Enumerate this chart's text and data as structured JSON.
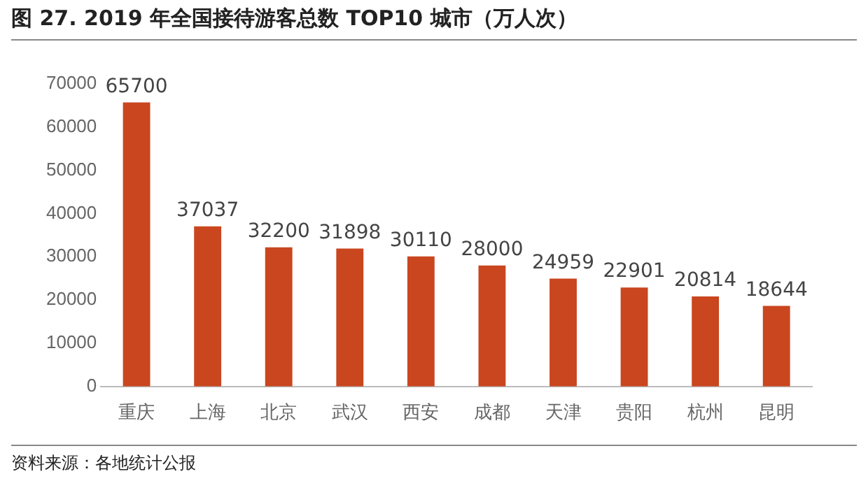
{
  "chart_data": {
    "type": "bar",
    "title": "图 27. 2019 年全国接待游客总数 TOP10 城市（万人次）",
    "categories": [
      "重庆",
      "上海",
      "北京",
      "武汉",
      "西安",
      "成都",
      "天津",
      "贵阳",
      "杭州",
      "昆明"
    ],
    "values": [
      65700,
      37037,
      32200,
      31898,
      30110,
      28000,
      24959,
      22901,
      20814,
      18644
    ],
    "color": "#c9461f",
    "ylim": [
      0,
      70000
    ],
    "yticks": [
      0,
      10000,
      20000,
      30000,
      40000,
      50000,
      60000,
      70000
    ],
    "grid": false,
    "legend": false,
    "data_labels": true,
    "annotations": [
      "资料来源：各地统计公报"
    ]
  }
}
